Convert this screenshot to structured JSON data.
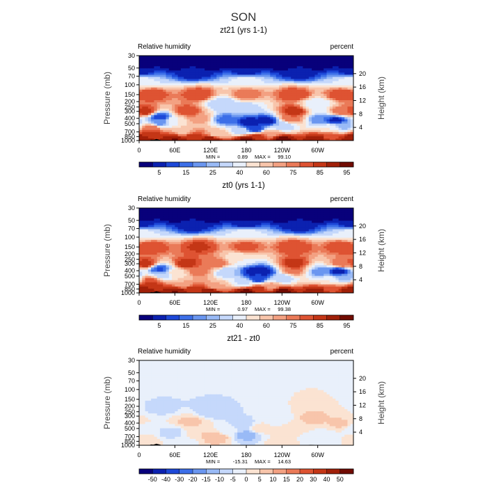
{
  "figure": {
    "supertitle": "SON"
  },
  "colors": {
    "rh_scale": [
      "#08007b",
      "#0b21b0",
      "#1d48d8",
      "#3c6fe8",
      "#6a96f0",
      "#99baf6",
      "#c5d8fb",
      "#e9f0fb",
      "#fbe3d2",
      "#f8c5ab",
      "#f3a182",
      "#ea7a58",
      "#de5332",
      "#c43616",
      "#a02009",
      "#710b02"
    ],
    "diff_scale": [
      "#08007b",
      "#0b21b0",
      "#1d48d8",
      "#3c6fe8",
      "#6a96f0",
      "#99baf6",
      "#c5d8fb",
      "#e9f0fb",
      "#fbe3d2",
      "#f8c5ab",
      "#f3a182",
      "#ea7a58",
      "#de5332",
      "#c43616",
      "#a02009",
      "#710b02"
    ],
    "terrain": "#000000"
  },
  "chart_data": [
    {
      "type": "heatmap",
      "title": "zt21 (yrs 1-1)",
      "left_label": "Relative humidity",
      "right_label": "percent",
      "ylabel": "Pressure (mb)",
      "y2label": "Height (km)",
      "xticks": [
        "0",
        "60E",
        "120E",
        "180",
        "120W",
        "60W"
      ],
      "xlim": [
        0,
        360
      ],
      "yticks": [
        "1000",
        "850",
        "700",
        "500",
        "400",
        "300",
        "250",
        "200",
        "150",
        "100",
        "70",
        "50",
        "30"
      ],
      "ylim": [
        1000,
        30
      ],
      "y_scale": "log",
      "y2ticks": [
        "4",
        "8",
        "12",
        "16",
        "20"
      ],
      "stats": {
        "min_label": "MIN =",
        "min": "0.89",
        "max_label": "MAX =",
        "max": "99.10"
      },
      "colorbar_ticks": [
        "5",
        "15",
        "25",
        "40",
        "60",
        "75",
        "85",
        "95"
      ],
      "colorbar_boundaries": [
        1,
        5,
        10,
        15,
        20,
        25,
        30,
        40,
        50,
        60,
        70,
        75,
        80,
        85,
        90,
        95,
        100
      ],
      "scale": "rh",
      "features": [
        {
          "lon": 0,
          "p": 30,
          "v": 0.5
        },
        {
          "lon": 60,
          "p": 30,
          "v": 0.5
        },
        {
          "lon": 120,
          "p": 30,
          "v": 0.5
        },
        {
          "lon": 180,
          "p": 30,
          "v": 0.5
        },
        {
          "lon": 240,
          "p": 30,
          "v": 0.5
        },
        {
          "lon": 300,
          "p": 30,
          "v": 0.5
        },
        {
          "lon": 360,
          "p": 30,
          "v": 0.5
        },
        {
          "lon": 0,
          "p": 40,
          "v": 0.5
        },
        {
          "lon": 60,
          "p": 40,
          "v": 0.5
        },
        {
          "lon": 120,
          "p": 40,
          "v": 0.5
        },
        {
          "lon": 180,
          "p": 40,
          "v": 0.5
        },
        {
          "lon": 240,
          "p": 40,
          "v": 0.5
        },
        {
          "lon": 300,
          "p": 40,
          "v": 0.5
        },
        {
          "lon": 360,
          "p": 40,
          "v": 0.5
        },
        {
          "lon": 0,
          "p": 60,
          "v": 6
        },
        {
          "lon": 90,
          "p": 60,
          "v": 6
        },
        {
          "lon": 180,
          "p": 60,
          "v": 6
        },
        {
          "lon": 270,
          "p": 60,
          "v": 6
        },
        {
          "lon": 360,
          "p": 60,
          "v": 6
        },
        {
          "lon": 0,
          "p": 80,
          "v": 45
        },
        {
          "lon": 180,
          "p": 80,
          "v": 45
        },
        {
          "lon": 360,
          "p": 80,
          "v": 45
        },
        {
          "lon": 20,
          "p": 150,
          "v": 85
        },
        {
          "lon": 100,
          "p": 150,
          "v": 85
        },
        {
          "lon": 180,
          "p": 150,
          "v": 80
        },
        {
          "lon": 260,
          "p": 150,
          "v": 85
        },
        {
          "lon": 340,
          "p": 150,
          "v": 85
        },
        {
          "lon": 140,
          "p": 220,
          "v": 30
        },
        {
          "lon": 180,
          "p": 250,
          "v": 38
        },
        {
          "lon": 300,
          "p": 230,
          "v": 40
        },
        {
          "lon": 10,
          "p": 300,
          "v": 88
        },
        {
          "lon": 80,
          "p": 300,
          "v": 85
        },
        {
          "lon": 260,
          "p": 300,
          "v": 88
        },
        {
          "lon": 340,
          "p": 300,
          "v": 80
        },
        {
          "lon": 35,
          "p": 380,
          "v": 12
        },
        {
          "lon": 35,
          "p": 480,
          "v": 22
        },
        {
          "lon": 60,
          "p": 450,
          "v": 50
        },
        {
          "lon": 100,
          "p": 400,
          "v": 75
        },
        {
          "lon": 145,
          "p": 420,
          "v": 18
        },
        {
          "lon": 185,
          "p": 480,
          "v": 6
        },
        {
          "lon": 215,
          "p": 450,
          "v": 6
        },
        {
          "lon": 195,
          "p": 620,
          "v": 10
        },
        {
          "lon": 170,
          "p": 680,
          "v": 35
        },
        {
          "lon": 240,
          "p": 550,
          "v": 30
        },
        {
          "lon": 255,
          "p": 400,
          "v": 80
        },
        {
          "lon": 305,
          "p": 420,
          "v": 20
        },
        {
          "lon": 330,
          "p": 430,
          "v": 8
        },
        {
          "lon": 345,
          "p": 550,
          "v": 25
        },
        {
          "lon": 320,
          "p": 600,
          "v": 50
        },
        {
          "lon": 20,
          "p": 600,
          "v": 80
        },
        {
          "lon": 20,
          "p": 750,
          "v": 88
        },
        {
          "lon": 75,
          "p": 700,
          "v": 68
        },
        {
          "lon": 130,
          "p": 770,
          "v": 68
        },
        {
          "lon": 220,
          "p": 750,
          "v": 72
        },
        {
          "lon": 90,
          "p": 850,
          "v": 88
        },
        {
          "lon": 200,
          "p": 850,
          "v": 88
        },
        {
          "lon": 320,
          "p": 850,
          "v": 84
        },
        {
          "lon": 0,
          "p": 950,
          "v": 94
        },
        {
          "lon": 60,
          "p": 950,
          "v": 96
        },
        {
          "lon": 120,
          "p": 950,
          "v": 94
        },
        {
          "lon": 180,
          "p": 950,
          "v": 96
        },
        {
          "lon": 240,
          "p": 950,
          "v": 96
        },
        {
          "lon": 300,
          "p": 950,
          "v": 94
        },
        {
          "lon": 360,
          "p": 950,
          "v": 94
        },
        {
          "lon": 60,
          "p": 1000,
          "v": 90
        },
        {
          "lon": 180,
          "p": 1000,
          "v": 95
        },
        {
          "lon": 300,
          "p": 1000,
          "v": 90
        }
      ]
    },
    {
      "type": "heatmap",
      "title": "zt0 (yrs 1-1)",
      "left_label": "Relative humidity",
      "right_label": "percent",
      "ylabel": "Pressure (mb)",
      "y2label": "Height (km)",
      "xticks": [
        "0",
        "60E",
        "120E",
        "180",
        "120W",
        "60W"
      ],
      "xlim": [
        0,
        360
      ],
      "yticks": [
        "1000",
        "850",
        "700",
        "500",
        "400",
        "300",
        "250",
        "200",
        "150",
        "100",
        "70",
        "50",
        "30"
      ],
      "ylim": [
        1000,
        30
      ],
      "y_scale": "log",
      "y2ticks": [
        "4",
        "8",
        "12",
        "16",
        "20"
      ],
      "stats": {
        "min_label": "MIN =",
        "min": "0.97",
        "max_label": "MAX =",
        "max": "99.38"
      },
      "colorbar_ticks": [
        "5",
        "15",
        "25",
        "40",
        "60",
        "75",
        "85",
        "95"
      ],
      "colorbar_boundaries": [
        1,
        5,
        10,
        15,
        20,
        25,
        30,
        40,
        50,
        60,
        70,
        75,
        80,
        85,
        90,
        95,
        100
      ],
      "scale": "rh",
      "features": [
        {
          "lon": 0,
          "p": 30,
          "v": 0.5
        },
        {
          "lon": 60,
          "p": 30,
          "v": 0.5
        },
        {
          "lon": 120,
          "p": 30,
          "v": 0.5
        },
        {
          "lon": 180,
          "p": 30,
          "v": 0.5
        },
        {
          "lon": 240,
          "p": 30,
          "v": 0.5
        },
        {
          "lon": 300,
          "p": 30,
          "v": 0.5
        },
        {
          "lon": 360,
          "p": 30,
          "v": 0.5
        },
        {
          "lon": 0,
          "p": 40,
          "v": 0.5
        },
        {
          "lon": 60,
          "p": 40,
          "v": 0.5
        },
        {
          "lon": 120,
          "p": 40,
          "v": 0.5
        },
        {
          "lon": 180,
          "p": 40,
          "v": 0.5
        },
        {
          "lon": 240,
          "p": 40,
          "v": 0.5
        },
        {
          "lon": 300,
          "p": 40,
          "v": 0.5
        },
        {
          "lon": 360,
          "p": 40,
          "v": 0.5
        },
        {
          "lon": 0,
          "p": 60,
          "v": 6
        },
        {
          "lon": 90,
          "p": 60,
          "v": 6
        },
        {
          "lon": 180,
          "p": 60,
          "v": 6
        },
        {
          "lon": 270,
          "p": 60,
          "v": 6
        },
        {
          "lon": 360,
          "p": 60,
          "v": 6
        },
        {
          "lon": 0,
          "p": 80,
          "v": 45
        },
        {
          "lon": 180,
          "p": 80,
          "v": 45
        },
        {
          "lon": 360,
          "p": 80,
          "v": 45
        },
        {
          "lon": 20,
          "p": 150,
          "v": 85
        },
        {
          "lon": 100,
          "p": 150,
          "v": 86
        },
        {
          "lon": 180,
          "p": 150,
          "v": 82
        },
        {
          "lon": 260,
          "p": 150,
          "v": 85
        },
        {
          "lon": 340,
          "p": 150,
          "v": 85
        },
        {
          "lon": 170,
          "p": 250,
          "v": 50
        },
        {
          "lon": 10,
          "p": 300,
          "v": 88
        },
        {
          "lon": 80,
          "p": 300,
          "v": 88
        },
        {
          "lon": 130,
          "p": 300,
          "v": 80
        },
        {
          "lon": 260,
          "p": 300,
          "v": 88
        },
        {
          "lon": 340,
          "p": 300,
          "v": 80
        },
        {
          "lon": 35,
          "p": 380,
          "v": 14
        },
        {
          "lon": 40,
          "p": 480,
          "v": 30
        },
        {
          "lon": 60,
          "p": 450,
          "v": 55
        },
        {
          "lon": 100,
          "p": 400,
          "v": 78
        },
        {
          "lon": 150,
          "p": 420,
          "v": 30
        },
        {
          "lon": 190,
          "p": 420,
          "v": 8
        },
        {
          "lon": 210,
          "p": 420,
          "v": 8
        },
        {
          "lon": 200,
          "p": 560,
          "v": 12
        },
        {
          "lon": 175,
          "p": 660,
          "v": 38
        },
        {
          "lon": 240,
          "p": 550,
          "v": 32
        },
        {
          "lon": 258,
          "p": 400,
          "v": 80
        },
        {
          "lon": 305,
          "p": 420,
          "v": 22
        },
        {
          "lon": 335,
          "p": 410,
          "v": 7
        },
        {
          "lon": 345,
          "p": 530,
          "v": 25
        },
        {
          "lon": 320,
          "p": 600,
          "v": 50
        },
        {
          "lon": 20,
          "p": 600,
          "v": 82
        },
        {
          "lon": 20,
          "p": 750,
          "v": 90
        },
        {
          "lon": 75,
          "p": 700,
          "v": 70
        },
        {
          "lon": 130,
          "p": 770,
          "v": 70
        },
        {
          "lon": 220,
          "p": 750,
          "v": 72
        },
        {
          "lon": 90,
          "p": 850,
          "v": 88
        },
        {
          "lon": 200,
          "p": 850,
          "v": 88
        },
        {
          "lon": 320,
          "p": 850,
          "v": 84
        },
        {
          "lon": 0,
          "p": 950,
          "v": 94
        },
        {
          "lon": 60,
          "p": 950,
          "v": 96
        },
        {
          "lon": 120,
          "p": 950,
          "v": 94
        },
        {
          "lon": 180,
          "p": 950,
          "v": 96
        },
        {
          "lon": 240,
          "p": 950,
          "v": 96
        },
        {
          "lon": 300,
          "p": 950,
          "v": 94
        },
        {
          "lon": 360,
          "p": 950,
          "v": 94
        },
        {
          "lon": 60,
          "p": 1000,
          "v": 90
        },
        {
          "lon": 180,
          "p": 1000,
          "v": 95
        },
        {
          "lon": 300,
          "p": 1000,
          "v": 90
        }
      ]
    },
    {
      "type": "heatmap",
      "title": "zt21 - zt0",
      "left_label": "Relative humidity",
      "right_label": "percent",
      "ylabel": "Pressure (mb)",
      "y2label": "Height (km)",
      "xticks": [
        "0",
        "60E",
        "120E",
        "180",
        "120W",
        "60W"
      ],
      "xlim": [
        0,
        360
      ],
      "yticks": [
        "1000",
        "850",
        "700",
        "500",
        "400",
        "300",
        "250",
        "200",
        "150",
        "100",
        "70",
        "50",
        "30"
      ],
      "ylim": [
        1000,
        30
      ],
      "y_scale": "log",
      "y2ticks": [
        "4",
        "8",
        "12",
        "16",
        "20"
      ],
      "stats": {
        "min_label": "MIN =",
        "min": "-15.31",
        "max_label": "MAX =",
        "max": "14.63"
      },
      "colorbar_ticks": [
        "-50",
        "-40",
        "-30",
        "-20",
        "-15",
        "-10",
        "-5",
        "0",
        "5",
        "10",
        "15",
        "20",
        "30",
        "40",
        "50"
      ],
      "colorbar_boundaries": [
        -60,
        -50,
        -40,
        -30,
        -20,
        -15,
        -10,
        -5,
        0,
        5,
        10,
        15,
        20,
        30,
        40,
        50,
        60
      ],
      "scale": "diff",
      "features": [
        {
          "lon": 0,
          "p": 30,
          "v": 0
        },
        {
          "lon": 180,
          "p": 30,
          "v": 0
        },
        {
          "lon": 360,
          "p": 30,
          "v": 0
        },
        {
          "lon": 0,
          "p": 500,
          "v": -1
        },
        {
          "lon": 360,
          "p": 500,
          "v": -1
        },
        {
          "lon": 40,
          "p": 220,
          "v": -6
        },
        {
          "lon": 55,
          "p": 600,
          "v": -7
        },
        {
          "lon": 85,
          "p": 380,
          "v": 6
        },
        {
          "lon": 100,
          "p": 600,
          "v": 5
        },
        {
          "lon": 120,
          "p": 250,
          "v": -8
        },
        {
          "lon": 130,
          "p": 700,
          "v": 8
        },
        {
          "lon": 150,
          "p": 550,
          "v": -3
        },
        {
          "lon": 175,
          "p": 420,
          "v": -7
        },
        {
          "lon": 180,
          "p": 650,
          "v": -12
        },
        {
          "lon": 205,
          "p": 500,
          "v": 3
        },
        {
          "lon": 235,
          "p": 350,
          "v": -5
        },
        {
          "lon": 260,
          "p": 450,
          "v": 4
        },
        {
          "lon": 290,
          "p": 330,
          "v": 6
        },
        {
          "lon": 310,
          "p": 700,
          "v": -4
        },
        {
          "lon": 340,
          "p": 420,
          "v": 6
        },
        {
          "lon": 10,
          "p": 850,
          "v": 4
        },
        {
          "lon": 70,
          "p": 880,
          "v": -4
        },
        {
          "lon": 240,
          "p": 900,
          "v": 2
        },
        {
          "lon": 300,
          "p": 880,
          "v": -3
        }
      ]
    }
  ]
}
